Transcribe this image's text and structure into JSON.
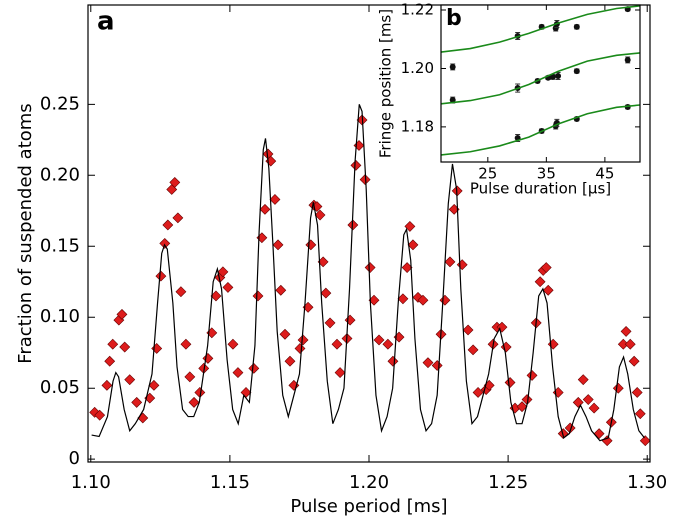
{
  "chart_data": [
    {
      "type": "scatter",
      "annotation": "a",
      "xlabel": "Pulse period [ms]",
      "ylabel": "Fraction of suspended atoms",
      "xlim": [
        1.099,
        1.301
      ],
      "ylim": [
        -0.002,
        0.32
      ],
      "xticks": [
        {
          "value": 1.1,
          "label": "1.10"
        },
        1.15,
        {
          "value": 1.2,
          "label": "1.20"
        },
        1.25,
        {
          "value": 1.3,
          "label": "1.30"
        }
      ],
      "yticks": [
        0,
        0.05,
        {
          "value": 0.1,
          "label": "0.10"
        },
        0.15,
        {
          "value": 0.2,
          "label": "0.20"
        },
        0.25
      ],
      "series": [
        {
          "type": "scatter",
          "marker": "diamond",
          "color": "#dd1c1c",
          "x": [
            1.1014,
            1.1032,
            1.1058,
            1.1068,
            1.1079,
            1.1101,
            1.1112,
            1.1122,
            1.114,
            1.1165,
            1.1187,
            1.1212,
            1.1227,
            1.1237,
            1.1252,
            1.1266,
            1.1277,
            1.1291,
            1.1302,
            1.1313,
            1.1324,
            1.1342,
            1.1356,
            1.1371,
            1.1392,
            1.1406,
            1.1421,
            1.1435,
            1.145,
            1.1464,
            1.1475,
            1.1493,
            1.1511,
            1.1529,
            1.1558,
            1.1586,
            1.1601,
            1.1615,
            1.1626,
            1.1637,
            1.1647,
            1.1662,
            1.1673,
            1.1683,
            1.1698,
            1.1716,
            1.173,
            1.1752,
            1.1763,
            1.1781,
            1.1791,
            1.1802,
            1.1813,
            1.1824,
            1.1835,
            1.1845,
            1.186,
            1.1885,
            1.1896,
            1.1921,
            1.1932,
            1.1942,
            1.1953,
            1.1964,
            1.1975,
            1.1986,
            1.2004,
            1.2018,
            1.2036,
            1.2068,
            1.2086,
            1.2108,
            1.2122,
            1.2137,
            1.2147,
            1.2158,
            1.2176,
            1.2194,
            1.2212,
            1.2245,
            1.2259,
            1.2273,
            1.2291,
            1.2306,
            1.2317,
            1.2335,
            1.2356,
            1.2374,
            1.2392,
            1.2421,
            1.2432,
            1.2446,
            1.246,
            1.2478,
            1.2493,
            1.2507,
            1.2525,
            1.255,
            1.2568,
            1.2586,
            1.2601,
            1.2615,
            1.2626,
            1.2637,
            1.2644,
            1.2662,
            1.268,
            1.2698,
            1.2723,
            1.2752,
            1.277,
            1.2788,
            1.2809,
            1.2827,
            1.2856,
            1.2871,
            1.2896,
            1.2914,
            1.2924,
            1.2939,
            1.2953,
            1.2964,
            1.2975,
            1.2993
          ],
          "values": [
            0.033,
            0.031,
            0.052,
            0.069,
            0.081,
            0.098,
            0.102,
            0.079,
            0.056,
            0.04,
            0.029,
            0.043,
            0.052,
            0.078,
            0.129,
            0.152,
            0.165,
            0.19,
            0.195,
            0.17,
            0.118,
            0.081,
            0.058,
            0.04,
            0.047,
            0.064,
            0.071,
            0.089,
            0.115,
            0.128,
            0.132,
            0.121,
            0.081,
            0.061,
            0.047,
            0.064,
            0.115,
            0.156,
            0.176,
            0.215,
            0.21,
            0.183,
            0.151,
            0.119,
            0.088,
            0.069,
            0.052,
            0.078,
            0.084,
            0.107,
            0.151,
            0.179,
            0.178,
            0.172,
            0.139,
            0.117,
            0.096,
            0.081,
            0.061,
            0.085,
            0.098,
            0.165,
            0.207,
            0.221,
            0.239,
            0.197,
            0.135,
            0.112,
            0.084,
            0.081,
            0.069,
            0.086,
            0.113,
            0.135,
            0.164,
            0.151,
            0.114,
            0.112,
            0.068,
            0.066,
            0.088,
            0.112,
            0.139,
            0.176,
            0.189,
            0.137,
            0.091,
            0.077,
            0.047,
            0.049,
            0.052,
            0.081,
            0.093,
            0.093,
            0.079,
            0.054,
            0.036,
            0.037,
            0.042,
            0.059,
            0.096,
            0.125,
            0.133,
            0.135,
            0.119,
            0.081,
            0.047,
            0.018,
            0.022,
            0.04,
            0.056,
            0.042,
            0.036,
            0.018,
            0.013,
            0.026,
            0.05,
            0.081,
            0.09,
            0.081,
            0.069,
            0.047,
            0.032,
            0.013
          ]
        },
        {
          "type": "line",
          "color": "#000000",
          "x": [
            1.1003,
            1.103,
            1.106,
            1.108,
            1.109,
            1.11,
            1.112,
            1.114,
            1.116,
            1.119,
            1.122,
            1.124,
            1.1255,
            1.1265,
            1.1275,
            1.1295,
            1.131,
            1.133,
            1.135,
            1.137,
            1.139,
            1.142,
            1.144,
            1.1455,
            1.147,
            1.149,
            1.151,
            1.153,
            1.155,
            1.157,
            1.159,
            1.1605,
            1.162,
            1.1628,
            1.164,
            1.1655,
            1.167,
            1.169,
            1.171,
            1.173,
            1.175,
            1.177,
            1.179,
            1.18,
            1.1815,
            1.183,
            1.185,
            1.187,
            1.189,
            1.191,
            1.193,
            1.195,
            1.1965,
            1.1975,
            1.199,
            1.2005,
            1.2025,
            1.2045,
            1.2065,
            1.2085,
            1.2105,
            1.2125,
            1.2135,
            1.215,
            1.2165,
            1.2185,
            1.2205,
            1.2225,
            1.2245,
            1.2265,
            1.2285,
            1.23,
            1.2315,
            1.233,
            1.235,
            1.237,
            1.239,
            1.241,
            1.243,
            1.245,
            1.247,
            1.249,
            1.251,
            1.253,
            1.255,
            1.257,
            1.259,
            1.261,
            1.2625,
            1.264,
            1.266,
            1.268,
            1.27,
            1.272,
            1.274,
            1.276,
            1.278,
            1.28,
            1.283,
            1.286,
            1.288,
            1.29,
            1.2915,
            1.293,
            1.295,
            1.297,
            1.299
          ],
          "values": [
            0.017,
            0.016,
            0.03,
            0.055,
            0.061,
            0.058,
            0.035,
            0.02,
            0.025,
            0.035,
            0.06,
            0.11,
            0.145,
            0.151,
            0.148,
            0.11,
            0.065,
            0.035,
            0.03,
            0.03,
            0.04,
            0.08,
            0.125,
            0.134,
            0.12,
            0.07,
            0.035,
            0.025,
            0.045,
            0.04,
            0.08,
            0.16,
            0.218,
            0.226,
            0.205,
            0.15,
            0.09,
            0.045,
            0.03,
            0.045,
            0.06,
            0.11,
            0.17,
            0.181,
            0.165,
            0.11,
            0.055,
            0.025,
            0.035,
            0.05,
            0.12,
            0.21,
            0.25,
            0.245,
            0.19,
            0.11,
            0.045,
            0.02,
            0.03,
            0.05,
            0.11,
            0.158,
            0.162,
            0.14,
            0.085,
            0.035,
            0.02,
            0.025,
            0.045,
            0.11,
            0.18,
            0.208,
            0.19,
            0.12,
            0.055,
            0.025,
            0.03,
            0.045,
            0.06,
            0.085,
            0.092,
            0.075,
            0.04,
            0.025,
            0.025,
            0.04,
            0.075,
            0.115,
            0.12,
            0.11,
            0.065,
            0.03,
            0.015,
            0.018,
            0.03,
            0.038,
            0.03,
            0.02,
            0.013,
            0.015,
            0.035,
            0.065,
            0.072,
            0.06,
            0.035,
            0.02,
            0.015
          ]
        }
      ]
    },
    {
      "type": "scatter",
      "annotation": "b",
      "xlabel": "Pulse duration [µs]",
      "ylabel": "Fringe position [ms]",
      "xlim": [
        17,
        51
      ],
      "ylim": [
        1.168,
        1.2217
      ],
      "xticks": [
        25,
        35,
        45
      ],
      "yticks": [
        1.18,
        {
          "value": 1.2,
          "label": "1.20"
        },
        1.22
      ],
      "series": [
        {
          "type": "scatter",
          "marker": "circle",
          "color": "#111111",
          "x": [
            19.0,
            30.1,
            34.2,
            36.6,
            36.8,
            40.2,
            48.9
          ],
          "values": [
            1.2005,
            1.2111,
            1.2142,
            1.2138,
            1.2152,
            1.2142,
            1.2203
          ],
          "errors": [
            0.001,
            0.0012,
            0.0007,
            0.001,
            0.0012,
            0.0007,
            0.0006
          ]
        },
        {
          "type": "scatter",
          "marker": "circle",
          "color": "#111111",
          "x": [
            19.0,
            30.1,
            33.5,
            35.3,
            36.1,
            37.0,
            40.2,
            48.9
          ],
          "values": [
            1.1892,
            1.1933,
            1.1957,
            1.1968,
            1.1971,
            1.1974,
            1.1991,
            1.2029
          ],
          "errors": [
            0.001,
            0.0014,
            0.0006,
            0.0006,
            0.0008,
            0.0012,
            0.0007,
            0.001
          ]
        },
        {
          "type": "scatter",
          "marker": "circle",
          "color": "#111111",
          "x": [
            30.1,
            34.2,
            36.6,
            36.8,
            40.2,
            48.9
          ],
          "values": [
            1.1762,
            1.1786,
            1.1803,
            1.1814,
            1.1827,
            1.1868
          ],
          "errors": [
            0.0012,
            0.0007,
            0.001,
            0.0012,
            0.0006,
            0.0006
          ]
        },
        {
          "type": "line",
          "color": "#1a8a1a",
          "x": [
            17,
            22,
            27,
            32,
            37,
            42,
            47,
            51
          ],
          "values": [
            1.2056,
            1.2068,
            1.209,
            1.212,
            1.2155,
            1.2185,
            1.2205,
            1.2214
          ]
        },
        {
          "type": "line",
          "color": "#1a8a1a",
          "x": [
            17,
            22,
            27,
            32,
            37,
            42,
            47,
            51
          ],
          "values": [
            1.1879,
            1.189,
            1.191,
            1.1945,
            1.199,
            1.2025,
            1.2045,
            1.2053
          ]
        },
        {
          "type": "line",
          "color": "#1a8a1a",
          "x": [
            17,
            22,
            27,
            32,
            37,
            42,
            47,
            51
          ],
          "values": [
            1.1704,
            1.1715,
            1.1735,
            1.1765,
            1.181,
            1.1845,
            1.1867,
            1.1875
          ]
        }
      ]
    }
  ]
}
